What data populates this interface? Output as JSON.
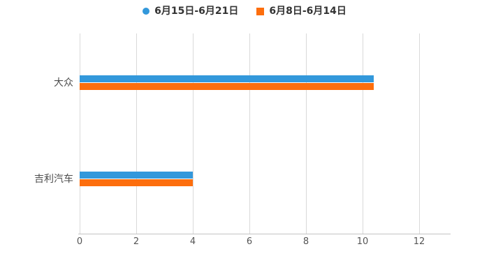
{
  "chart_data": {
    "type": "bar",
    "orientation": "horizontal",
    "title": "",
    "xlabel": "",
    "ylabel": "",
    "categories": [
      "大众",
      "吉利汽车"
    ],
    "series": [
      {
        "name": "6月15日-6月21日",
        "color": "#3398DB",
        "marker": "circle",
        "values": [
          10.4,
          4
        ]
      },
      {
        "name": "6月8日-6月14日",
        "color": "#FD6E0D",
        "marker": "square",
        "values": [
          10.4,
          4
        ]
      }
    ],
    "x_ticks": [
      "0",
      "2",
      "4",
      "6",
      "8",
      "10",
      "12"
    ],
    "x_tick_values": [
      0,
      2,
      4,
      6,
      8,
      10,
      12
    ],
    "xlim": [
      0,
      12
    ],
    "grid": true,
    "legend_position": "top-center",
    "colors": {
      "background": "#FFFFFF",
      "grid_line": "#D9D9D9",
      "axis_line": "#C4C4C4",
      "tick_label": "#555555",
      "category_label": "#4D4D4D",
      "legend_text": "#333333"
    }
  }
}
